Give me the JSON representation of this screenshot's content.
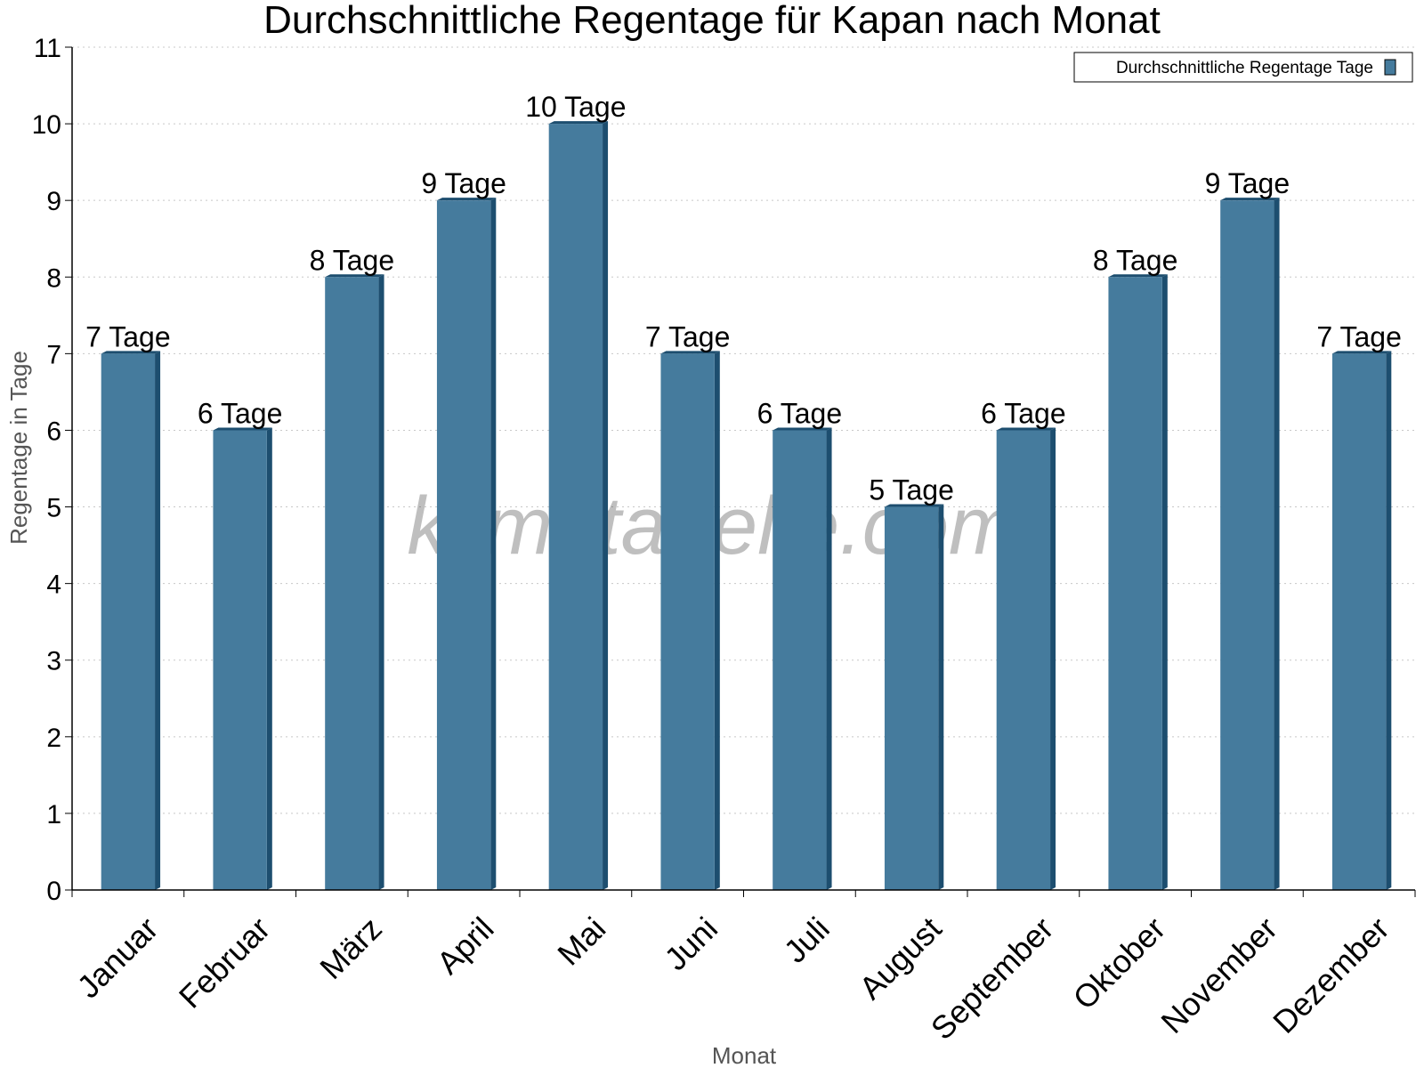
{
  "chart_data": {
    "type": "bar",
    "title": "Durchschnittliche Regentage für Kapan nach Monat",
    "xlabel": "Monat",
    "ylabel": "Regentage in Tage",
    "ylim": [
      0,
      11
    ],
    "yticks": [
      0,
      1,
      2,
      3,
      4,
      5,
      6,
      7,
      8,
      9,
      10,
      11
    ],
    "grid": true,
    "legend_position": "top-right",
    "categories": [
      "Januar",
      "Februar",
      "März",
      "April",
      "Mai",
      "Juni",
      "Juli",
      "August",
      "September",
      "Oktober",
      "November",
      "Dezember"
    ],
    "series": [
      {
        "name": "Durchschnittliche Regentage Tage",
        "values": [
          7,
          6,
          8,
          9,
          10,
          7,
          6,
          5,
          6,
          8,
          9,
          7
        ],
        "data_labels": [
          "7 Tage",
          "6 Tage",
          "8 Tage",
          "9 Tage",
          "10 Tage",
          "7 Tage",
          "6 Tage",
          "5 Tage",
          "6 Tage",
          "8 Tage",
          "9 Tage",
          "7 Tage"
        ],
        "color": "#457b9d"
      }
    ],
    "bar_side_color": "#1d4e6f",
    "watermark": "klimatabelle.com"
  }
}
